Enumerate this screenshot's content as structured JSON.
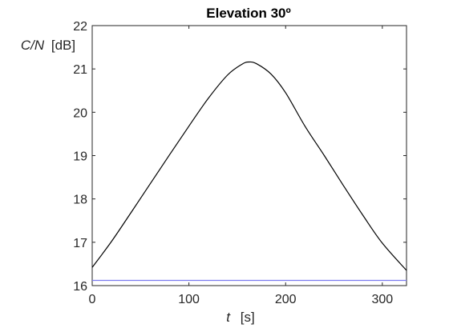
{
  "chart_data": {
    "type": "line",
    "title": "Elevation 30º",
    "xlabel": {
      "var": "t",
      "unit": "[s]"
    },
    "ylabel": {
      "var": "C/N",
      "unit": "[dB]"
    },
    "xlim": [
      0,
      325
    ],
    "ylim": [
      16,
      22
    ],
    "xticks": [
      0,
      100,
      200,
      300
    ],
    "yticks": [
      16,
      17,
      18,
      19,
      20,
      21,
      22
    ],
    "grid": false,
    "series": [
      {
        "color": "#000000",
        "x": [
          0,
          20,
          40,
          60,
          80,
          100,
          120,
          140,
          155,
          162,
          170,
          185,
          200,
          220,
          240,
          260,
          280,
          300,
          325
        ],
        "y": [
          16.42,
          17.02,
          17.68,
          18.35,
          19.02,
          19.68,
          20.32,
          20.86,
          21.11,
          21.16,
          21.12,
          20.88,
          20.45,
          19.68,
          19.0,
          18.3,
          17.62,
          16.98,
          16.35
        ]
      },
      {
        "color": "#7b7bf0",
        "x": [
          0,
          325
        ],
        "y": [
          16.12,
          16.12
        ]
      }
    ]
  }
}
